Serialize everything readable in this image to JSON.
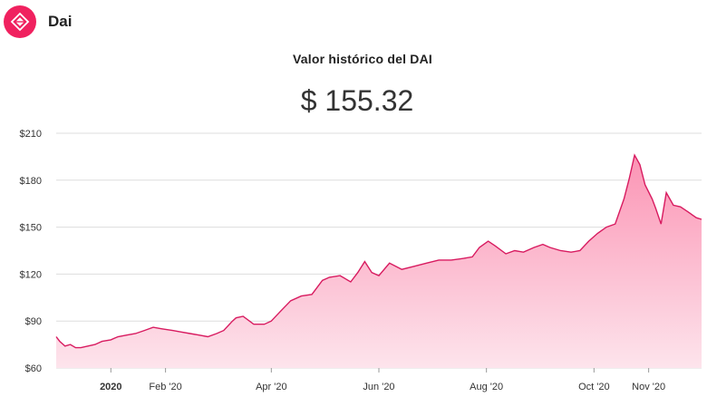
{
  "header": {
    "coin_name": "Dai",
    "logo_icon": "dai-logo-icon"
  },
  "chart_title": "Valor histórico del DAI",
  "current_price": "$ 155.32",
  "colors": {
    "accent": "#f0215f",
    "line": "#d81b60",
    "fill_top": "#fb94b4",
    "fill_bottom": "#fde4ec",
    "grid": "#dddddd"
  },
  "chart_data": {
    "type": "area",
    "title": "Valor histórico del DAI",
    "xlabel": "",
    "ylabel": "",
    "ylim": [
      60,
      210
    ],
    "y_ticks": [
      60,
      90,
      120,
      150,
      180,
      210
    ],
    "y_tick_labels": [
      "$60",
      "$90",
      "$120",
      "$150",
      "$180",
      "$210"
    ],
    "x_ticks": [
      "2020-01-01",
      "2020-02-01",
      "2020-04-01",
      "2020-06-01",
      "2020-08-01",
      "2020-10-01",
      "2020-11-01"
    ],
    "x_tick_labels": [
      "2020",
      "Feb '20",
      "Apr '20",
      "Jun '20",
      "Aug '20",
      "Oct '20",
      "Nov '20"
    ],
    "grid": true,
    "legend": "none",
    "series": [
      {
        "x": [
          "2019-12-01",
          "2019-12-03",
          "2019-12-06",
          "2019-12-09",
          "2019-12-12",
          "2019-12-15",
          "2019-12-19",
          "2019-12-23",
          "2019-12-27",
          "2020-01-01",
          "2020-01-05",
          "2020-01-10",
          "2020-01-15",
          "2020-01-20",
          "2020-01-25",
          "2020-01-30",
          "2020-02-05",
          "2020-02-10",
          "2020-02-15",
          "2020-02-20",
          "2020-02-25",
          "2020-03-01",
          "2020-03-05",
          "2020-03-10",
          "2020-03-12",
          "2020-03-16",
          "2020-03-22",
          "2020-03-28",
          "2020-04-01",
          "2020-04-06",
          "2020-04-12",
          "2020-04-18",
          "2020-04-24",
          "2020-04-30",
          "2020-05-04",
          "2020-05-10",
          "2020-05-16",
          "2020-05-20",
          "2020-05-24",
          "2020-05-28",
          "2020-06-01",
          "2020-06-07",
          "2020-06-14",
          "2020-06-21",
          "2020-06-28",
          "2020-07-05",
          "2020-07-12",
          "2020-07-19",
          "2020-07-24",
          "2020-07-28",
          "2020-08-02",
          "2020-08-06",
          "2020-08-12",
          "2020-08-17",
          "2020-08-22",
          "2020-08-28",
          "2020-09-02",
          "2020-09-06",
          "2020-09-12",
          "2020-09-18",
          "2020-09-23",
          "2020-09-28",
          "2020-10-03",
          "2020-10-08",
          "2020-10-13",
          "2020-10-18",
          "2020-10-21",
          "2020-10-24",
          "2020-10-27",
          "2020-10-30",
          "2020-11-03",
          "2020-11-05",
          "2020-11-08",
          "2020-11-11",
          "2020-11-15",
          "2020-11-19",
          "2020-11-23",
          "2020-11-28",
          "2020-12-01"
        ],
        "values": [
          80,
          77,
          74,
          75,
          73,
          73,
          74,
          75,
          77,
          78,
          80,
          81,
          82,
          84,
          86,
          85,
          84,
          83,
          82,
          81,
          80,
          82,
          84,
          90,
          92,
          93,
          88,
          88,
          90,
          96,
          103,
          106,
          107,
          116,
          118,
          119,
          115,
          121,
          128,
          121,
          119,
          127,
          123,
          125,
          127,
          129,
          129,
          130,
          131,
          137,
          141,
          138,
          133,
          135,
          134,
          137,
          139,
          137,
          135,
          134,
          135,
          141,
          146,
          150,
          152,
          168,
          181,
          196,
          190,
          177,
          168,
          162,
          152,
          172,
          164,
          163,
          160,
          156,
          155
        ]
      }
    ]
  }
}
